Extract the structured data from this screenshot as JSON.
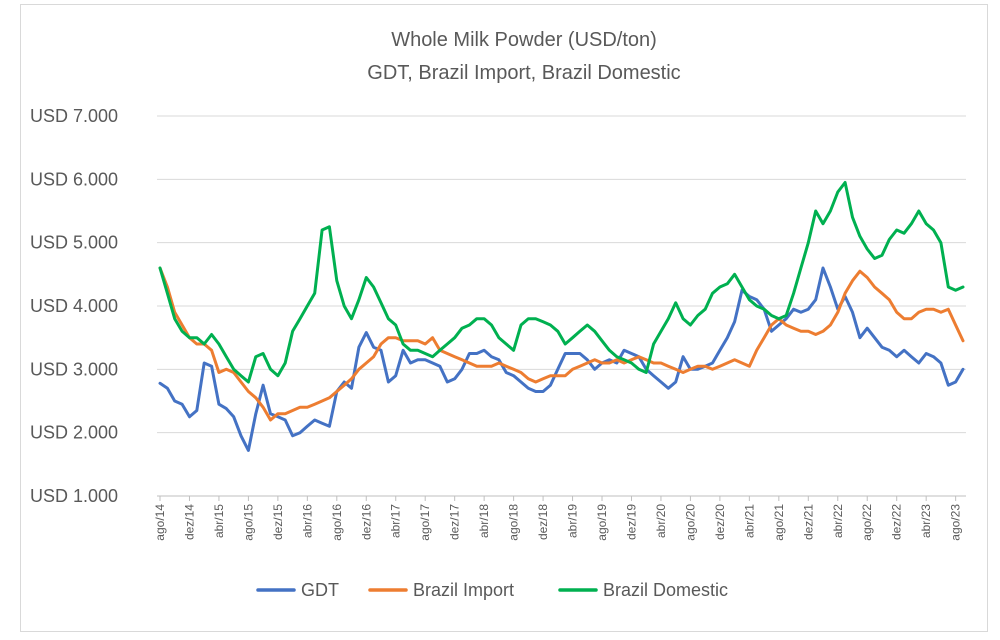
{
  "chart_data": {
    "type": "line",
    "title": "Whole Milk Powder (USD/ton)",
    "subtitle": "GDT, Brazil Import, Brazil Domestic",
    "xlabel": "",
    "ylabel": "",
    "ylim": [
      1000,
      7000
    ],
    "yticks": [
      1000,
      2000,
      3000,
      4000,
      5000,
      6000,
      7000
    ],
    "ytick_labels": [
      "USD 1.000",
      "USD 2.000",
      "USD 3.000",
      "USD 4.000",
      "USD 5.000",
      "USD 6.000",
      "USD 7.000"
    ],
    "grid": true,
    "legend_position": "bottom",
    "x_tick_labels": [
      "ago/14",
      "dez/14",
      "abr/15",
      "ago/15",
      "dez/15",
      "abr/16",
      "ago/16",
      "dez/16",
      "abr/17",
      "ago/17",
      "dez/17",
      "abr/18",
      "ago/18",
      "dez/18",
      "abr/19",
      "ago/19",
      "dez/19",
      "abr/20",
      "ago/20",
      "dez/20",
      "abr/21",
      "ago/21",
      "dez/21",
      "abr/22",
      "ago/22",
      "dez/22",
      "abr/23",
      "ago/23"
    ],
    "x_start": "ago/14",
    "x_interval": "month",
    "series": [
      {
        "name": "GDT",
        "color": "#4472C4",
        "values": [
          2780,
          2700,
          2500,
          2450,
          2250,
          2350,
          3100,
          3050,
          2450,
          2380,
          2250,
          1950,
          1720,
          2300,
          2750,
          2300,
          2250,
          2200,
          1950,
          2000,
          2100,
          2200,
          2150,
          2100,
          2650,
          2800,
          2700,
          3350,
          3580,
          3350,
          3300,
          2800,
          2900,
          3300,
          3100,
          3150,
          3150,
          3100,
          3050,
          2800,
          2850,
          3000,
          3250,
          3250,
          3300,
          3200,
          3150,
          2950,
          2900,
          2800,
          2700,
          2650,
          2650,
          2750,
          3000,
          3250,
          3250,
          3250,
          3150,
          3000,
          3100,
          3150,
          3100,
          3300,
          3250,
          3200,
          3000,
          2900,
          2800,
          2700,
          2800,
          3200,
          3000,
          3000,
          3050,
          3100,
          3300,
          3500,
          3750,
          4250,
          4150,
          4100,
          3950,
          3600,
          3700,
          3800,
          3950,
          3900,
          3950,
          4100,
          4600,
          4300,
          3950,
          4150,
          3900,
          3500,
          3650,
          3500,
          3350,
          3300,
          3200,
          3300,
          3200,
          3100,
          3250,
          3200,
          3100,
          2750,
          2800,
          3000
        ]
      },
      {
        "name": "Brazil Import",
        "color": "#ED7D31",
        "values": [
          4600,
          4300,
          3900,
          3700,
          3500,
          3400,
          3400,
          3300,
          2950,
          3000,
          2950,
          2800,
          2650,
          2550,
          2400,
          2200,
          2300,
          2300,
          2350,
          2400,
          2400,
          2450,
          2500,
          2550,
          2650,
          2750,
          2850,
          3000,
          3100,
          3200,
          3400,
          3500,
          3500,
          3450,
          3450,
          3450,
          3400,
          3500,
          3300,
          3250,
          3200,
          3150,
          3100,
          3050,
          3050,
          3050,
          3100,
          3050,
          3000,
          2950,
          2850,
          2800,
          2850,
          2900,
          2900,
          2900,
          3000,
          3050,
          3100,
          3150,
          3100,
          3100,
          3150,
          3100,
          3150,
          3200,
          3150,
          3100,
          3100,
          3050,
          3000,
          2950,
          3000,
          3050,
          3050,
          3000,
          3050,
          3100,
          3150,
          3100,
          3050,
          3300,
          3500,
          3700,
          3800,
          3700,
          3650,
          3600,
          3600,
          3550,
          3600,
          3700,
          3900,
          4200,
          4400,
          4550,
          4450,
          4300,
          4200,
          4100,
          3900,
          3800,
          3800,
          3900,
          3950,
          3950,
          3900,
          3950,
          3700,
          3450
        ]
      },
      {
        "name": "Brazil Domestic",
        "color": "#00B050",
        "values": [
          4600,
          4200,
          3800,
          3600,
          3500,
          3500,
          3400,
          3550,
          3400,
          3200,
          3000,
          2900,
          2800,
          3200,
          3250,
          3000,
          2900,
          3100,
          3600,
          3800,
          4000,
          4200,
          5200,
          5250,
          4400,
          4000,
          3800,
          4100,
          4450,
          4300,
          4050,
          3800,
          3700,
          3400,
          3300,
          3300,
          3250,
          3200,
          3300,
          3400,
          3500,
          3650,
          3700,
          3800,
          3800,
          3700,
          3500,
          3400,
          3300,
          3700,
          3800,
          3800,
          3750,
          3700,
          3600,
          3400,
          3500,
          3600,
          3700,
          3600,
          3450,
          3300,
          3200,
          3150,
          3100,
          3000,
          2950,
          3400,
          3600,
          3800,
          4050,
          3800,
          3700,
          3850,
          3950,
          4200,
          4300,
          4350,
          4500,
          4300,
          4100,
          4000,
          3950,
          3850,
          3800,
          3850,
          4200,
          4600,
          5000,
          5500,
          5300,
          5500,
          5800,
          5950,
          5400,
          5100,
          4900,
          4750,
          4800,
          5050,
          5200,
          5150,
          5300,
          5500,
          5300,
          5200,
          5000,
          4300,
          4250,
          4300
        ]
      }
    ]
  }
}
